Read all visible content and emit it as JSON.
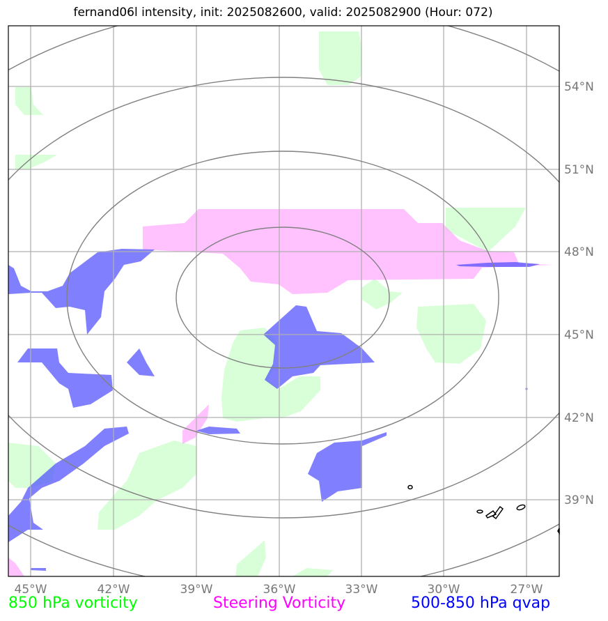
{
  "title": "fernand06l intensity, init: 2025082600, valid: 2025082900 (Hour: 072)",
  "lon_labels": [
    "45°W",
    "42°W",
    "39°W",
    "36°W",
    "33°W",
    "30°W",
    "27°W"
  ],
  "lat_labels": [
    "54°N",
    "51°N",
    "48°N",
    "45°N",
    "42°N",
    "39°N"
  ],
  "legend": {
    "vort850": {
      "label": "850 hPa vorticity",
      "color": "#00ff00"
    },
    "steering": {
      "label": "Steering Vorticity",
      "color": "#ff00ff"
    },
    "qvap": {
      "label": "500-850 hPa qvap",
      "color": "#0000ff"
    }
  },
  "colors": {
    "vort850_fill": "#ccffcc",
    "steering_fill": "#ff99ff",
    "qvap_fill": "#4444ff",
    "rings": "#808080",
    "grid": "#b0b0b0"
  }
}
